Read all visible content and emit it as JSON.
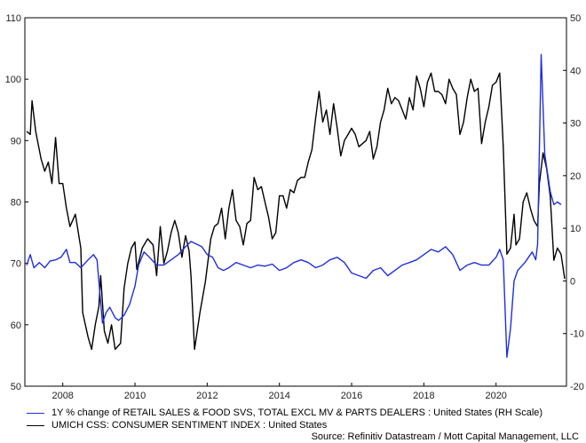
{
  "chart_data": {
    "type": "line",
    "x_tick_labels": [
      "2008",
      "2010",
      "2012",
      "2014",
      "2016",
      "2018",
      "2020"
    ],
    "x_range": [
      2006.95,
      2021.95
    ],
    "left_axis": {
      "range": [
        50,
        110
      ],
      "ticks": [
        50,
        60,
        70,
        80,
        90,
        100,
        110
      ]
    },
    "right_axis": {
      "range": [
        -20,
        50
      ],
      "ticks": [
        -20,
        -10,
        0,
        10,
        20,
        30,
        40,
        50
      ]
    },
    "series": [
      {
        "name": "1Y % change of RETAIL SALES & FOOD SVS, TOTAL EXCL MV & PARTS DEALERS : United States (RH Scale)",
        "color": "#1f2fe0",
        "axis": "right",
        "points": [
          [
            2007.0,
            3
          ],
          [
            2007.1,
            5
          ],
          [
            2007.2,
            2.5
          ],
          [
            2007.35,
            3.5
          ],
          [
            2007.5,
            2.5
          ],
          [
            2007.65,
            3.8
          ],
          [
            2007.8,
            4
          ],
          [
            2007.95,
            4.5
          ],
          [
            2008.1,
            6
          ],
          [
            2008.2,
            3.5
          ],
          [
            2008.35,
            3.5
          ],
          [
            2008.5,
            2.5
          ],
          [
            2008.7,
            4
          ],
          [
            2008.85,
            5
          ],
          [
            2008.95,
            4
          ],
          [
            2009.1,
            -8
          ],
          [
            2009.2,
            -6
          ],
          [
            2009.3,
            -5
          ],
          [
            2009.45,
            -7
          ],
          [
            2009.55,
            -7.5
          ],
          [
            2009.7,
            -6.5
          ],
          [
            2009.85,
            -4.5
          ],
          [
            2010.0,
            -1
          ],
          [
            2010.1,
            3
          ],
          [
            2010.25,
            5.5
          ],
          [
            2010.4,
            4.5
          ],
          [
            2010.6,
            3
          ],
          [
            2010.8,
            3
          ],
          [
            2011.0,
            4
          ],
          [
            2011.2,
            5
          ],
          [
            2011.4,
            6.5
          ],
          [
            2011.55,
            7.5
          ],
          [
            2011.7,
            7
          ],
          [
            2011.85,
            6.5
          ],
          [
            2012.0,
            5
          ],
          [
            2012.15,
            4.5
          ],
          [
            2012.3,
            2.5
          ],
          [
            2012.45,
            2
          ],
          [
            2012.6,
            2.5
          ],
          [
            2012.8,
            3.5
          ],
          [
            2013.0,
            3
          ],
          [
            2013.2,
            2.5
          ],
          [
            2013.4,
            3
          ],
          [
            2013.6,
            2.8
          ],
          [
            2013.8,
            3.2
          ],
          [
            2014.0,
            2
          ],
          [
            2014.2,
            2.5
          ],
          [
            2014.4,
            3.5
          ],
          [
            2014.6,
            4
          ],
          [
            2014.8,
            3.5
          ],
          [
            2015.0,
            2.5
          ],
          [
            2015.2,
            3
          ],
          [
            2015.4,
            4
          ],
          [
            2015.6,
            4.5
          ],
          [
            2015.8,
            3.5
          ],
          [
            2016.0,
            1.5
          ],
          [
            2016.2,
            1
          ],
          [
            2016.4,
            0.5
          ],
          [
            2016.6,
            2
          ],
          [
            2016.8,
            2.5
          ],
          [
            2017.0,
            1
          ],
          [
            2017.2,
            2
          ],
          [
            2017.4,
            3
          ],
          [
            2017.6,
            3.5
          ],
          [
            2017.8,
            4
          ],
          [
            2018.0,
            5
          ],
          [
            2018.2,
            6
          ],
          [
            2018.4,
            5.5
          ],
          [
            2018.6,
            6.5
          ],
          [
            2018.8,
            5
          ],
          [
            2019.0,
            2
          ],
          [
            2019.2,
            3
          ],
          [
            2019.4,
            3.5
          ],
          [
            2019.6,
            3
          ],
          [
            2019.8,
            3
          ],
          [
            2020.0,
            4.5
          ],
          [
            2020.1,
            6
          ],
          [
            2020.2,
            4
          ],
          [
            2020.3,
            -14.5
          ],
          [
            2020.4,
            -9
          ],
          [
            2020.5,
            0
          ],
          [
            2020.6,
            2
          ],
          [
            2020.8,
            3.5
          ],
          [
            2021.0,
            5.5
          ],
          [
            2021.1,
            4
          ],
          [
            2021.15,
            7
          ],
          [
            2021.25,
            43
          ],
          [
            2021.35,
            24
          ],
          [
            2021.5,
            17
          ],
          [
            2021.6,
            14.5
          ],
          [
            2021.7,
            15
          ],
          [
            2021.8,
            14.5
          ]
        ]
      },
      {
        "name": "UMICH CSS: CONSUMER SENTIMENT INDEX : United States",
        "color": "#000000",
        "axis": "left",
        "points": [
          [
            2007.0,
            91.5
          ],
          [
            2007.1,
            91
          ],
          [
            2007.15,
            96.5
          ],
          [
            2007.25,
            91.5
          ],
          [
            2007.4,
            87
          ],
          [
            2007.5,
            85
          ],
          [
            2007.6,
            86.5
          ],
          [
            2007.7,
            83
          ],
          [
            2007.8,
            90.5
          ],
          [
            2007.9,
            83
          ],
          [
            2008.0,
            83
          ],
          [
            2008.1,
            79
          ],
          [
            2008.2,
            76
          ],
          [
            2008.35,
            78
          ],
          [
            2008.5,
            72.5
          ],
          [
            2008.55,
            62
          ],
          [
            2008.7,
            58
          ],
          [
            2008.8,
            56
          ],
          [
            2008.9,
            60
          ],
          [
            2009.0,
            63
          ],
          [
            2009.05,
            68
          ],
          [
            2009.15,
            59
          ],
          [
            2009.25,
            57
          ],
          [
            2009.35,
            60
          ],
          [
            2009.45,
            56
          ],
          [
            2009.6,
            57
          ],
          [
            2009.7,
            66
          ],
          [
            2009.8,
            70
          ],
          [
            2009.9,
            72.5
          ],
          [
            2010.0,
            73.5
          ],
          [
            2010.05,
            69
          ],
          [
            2010.2,
            72.5
          ],
          [
            2010.35,
            74
          ],
          [
            2010.5,
            73
          ],
          [
            2010.6,
            68
          ],
          [
            2010.7,
            76
          ],
          [
            2010.8,
            70
          ],
          [
            2010.9,
            72
          ],
          [
            2011.0,
            75
          ],
          [
            2011.1,
            77
          ],
          [
            2011.2,
            75
          ],
          [
            2011.3,
            71
          ],
          [
            2011.4,
            74.5
          ],
          [
            2011.5,
            72
          ],
          [
            2011.55,
            68
          ],
          [
            2011.65,
            56
          ],
          [
            2011.8,
            62
          ],
          [
            2011.95,
            67
          ],
          [
            2012.1,
            74
          ],
          [
            2012.2,
            76
          ],
          [
            2012.3,
            76.5
          ],
          [
            2012.4,
            79
          ],
          [
            2012.5,
            74
          ],
          [
            2012.6,
            79
          ],
          [
            2012.7,
            82
          ],
          [
            2012.8,
            77
          ],
          [
            2012.9,
            76
          ],
          [
            2013.0,
            73
          ],
          [
            2013.1,
            76.5
          ],
          [
            2013.2,
            77
          ],
          [
            2013.3,
            84
          ],
          [
            2013.4,
            82
          ],
          [
            2013.5,
            82.5
          ],
          [
            2013.6,
            80
          ],
          [
            2013.7,
            77.5
          ],
          [
            2013.8,
            74
          ],
          [
            2013.9,
            75
          ],
          [
            2014.0,
            81
          ],
          [
            2014.1,
            81
          ],
          [
            2014.2,
            79
          ],
          [
            2014.3,
            82
          ],
          [
            2014.4,
            81.5
          ],
          [
            2014.5,
            83.5
          ],
          [
            2014.6,
            84
          ],
          [
            2014.7,
            84
          ],
          [
            2014.8,
            86.5
          ],
          [
            2014.9,
            88.5
          ],
          [
            2015.0,
            93.5
          ],
          [
            2015.1,
            98
          ],
          [
            2015.2,
            93
          ],
          [
            2015.3,
            95
          ],
          [
            2015.4,
            91
          ],
          [
            2015.5,
            96
          ],
          [
            2015.6,
            92
          ],
          [
            2015.7,
            87.5
          ],
          [
            2015.8,
            90
          ],
          [
            2015.9,
            91
          ],
          [
            2016.0,
            92
          ],
          [
            2016.1,
            91
          ],
          [
            2016.2,
            89
          ],
          [
            2016.3,
            89.5
          ],
          [
            2016.4,
            90
          ],
          [
            2016.5,
            91.5
          ],
          [
            2016.6,
            87
          ],
          [
            2016.7,
            89
          ],
          [
            2016.8,
            93
          ],
          [
            2016.9,
            95
          ],
          [
            2017.0,
            98.5
          ],
          [
            2017.1,
            96
          ],
          [
            2017.2,
            97
          ],
          [
            2017.3,
            96.5
          ],
          [
            2017.4,
            95
          ],
          [
            2017.5,
            93.5
          ],
          [
            2017.6,
            97
          ],
          [
            2017.7,
            95
          ],
          [
            2017.8,
            100.5
          ],
          [
            2017.9,
            98.5
          ],
          [
            2018.0,
            95.5
          ],
          [
            2018.1,
            99.5
          ],
          [
            2018.2,
            101
          ],
          [
            2018.3,
            98
          ],
          [
            2018.4,
            98
          ],
          [
            2018.5,
            97.5
          ],
          [
            2018.6,
            96
          ],
          [
            2018.7,
            100
          ],
          [
            2018.8,
            98.5
          ],
          [
            2018.9,
            97.5
          ],
          [
            2019.0,
            91
          ],
          [
            2019.1,
            93
          ],
          [
            2019.2,
            97
          ],
          [
            2019.3,
            100
          ],
          [
            2019.4,
            98
          ],
          [
            2019.5,
            98.5
          ],
          [
            2019.6,
            89.5
          ],
          [
            2019.7,
            93
          ],
          [
            2019.8,
            95.5
          ],
          [
            2019.9,
            99
          ],
          [
            2020.0,
            99.5
          ],
          [
            2020.1,
            101
          ],
          [
            2020.2,
            89
          ],
          [
            2020.3,
            71.5
          ],
          [
            2020.4,
            72.5
          ],
          [
            2020.5,
            78
          ],
          [
            2020.55,
            73
          ],
          [
            2020.65,
            74
          ],
          [
            2020.75,
            80
          ],
          [
            2020.85,
            81.5
          ],
          [
            2020.95,
            79
          ],
          [
            2021.05,
            77
          ],
          [
            2021.15,
            76
          ],
          [
            2021.2,
            83
          ],
          [
            2021.3,
            88
          ],
          [
            2021.4,
            85.5
          ],
          [
            2021.5,
            81
          ],
          [
            2021.6,
            70.5
          ],
          [
            2021.7,
            72.5
          ],
          [
            2021.8,
            71.5
          ],
          [
            2021.9,
            67.5
          ]
        ]
      }
    ],
    "legend": {
      "placement": "bottom-left"
    },
    "source": "Source: Refinitiv Datastream / Mott Capital Management, LLC"
  }
}
